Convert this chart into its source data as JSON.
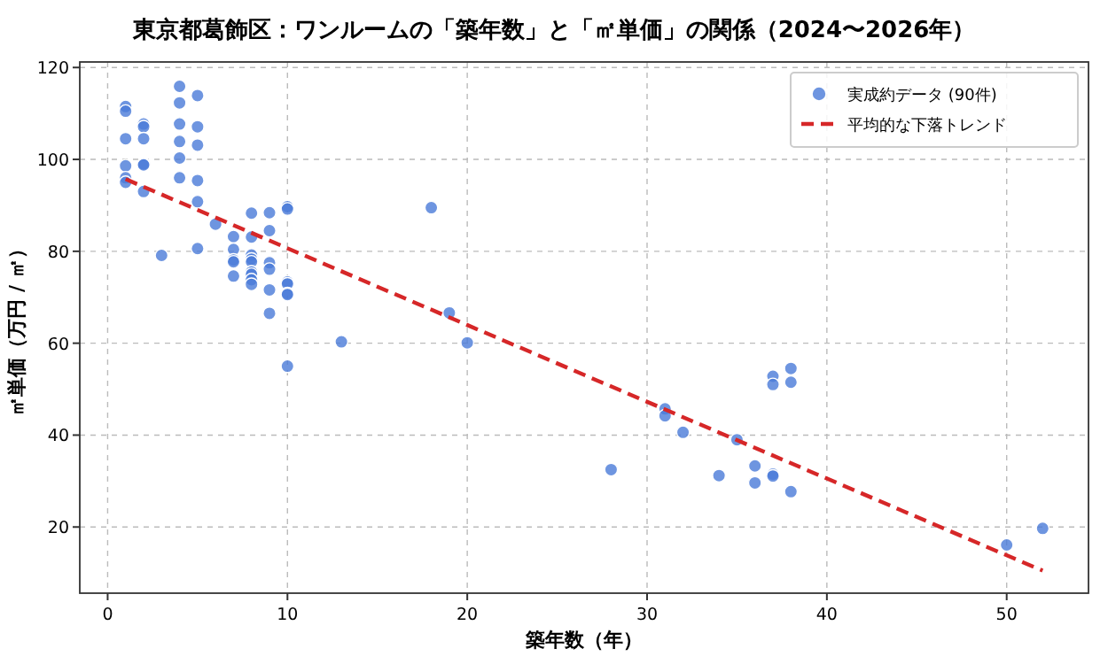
{
  "chart_data": {
    "type": "scatter",
    "title": "東京都葛飾区：ワンルームの「築年数」と「㎡単価」の関係（2024〜2026年）",
    "xlabel": "築年数（年）",
    "ylabel": "㎡単価（万円 / ㎡）",
    "xlim": [
      -1.55,
      54.55
    ],
    "ylim": [
      5.6,
      121.2
    ],
    "xticks": [
      0,
      10,
      20,
      30,
      40,
      50
    ],
    "yticks": [
      20,
      40,
      60,
      80,
      100,
      120
    ],
    "grid": true,
    "legend": "top right",
    "series": [
      {
        "name": "実成約データ (90件)",
        "marker": "circle",
        "color": "#4a7bd8",
        "x": [
          1,
          1,
          1,
          1,
          1,
          1,
          2,
          2,
          2,
          2,
          2,
          2,
          3,
          4,
          4,
          4,
          4,
          4,
          4,
          5,
          5,
          5,
          5,
          5,
          5,
          6,
          7,
          7,
          7,
          7,
          7,
          8,
          8,
          8,
          8,
          8,
          8,
          8,
          8,
          8,
          9,
          9,
          9,
          9,
          9,
          9,
          10,
          10,
          10,
          10,
          10,
          10,
          10,
          13,
          18,
          19,
          20,
          28,
          31,
          31,
          32,
          34,
          35,
          36,
          36,
          37,
          37,
          37,
          37,
          38,
          38,
          38,
          50,
          52
        ],
        "values": [
          111.5,
          110.5,
          104.5,
          98.6,
          96,
          95,
          107.7,
          107.1,
          104.5,
          99,
          98.8,
          93,
          79.1,
          115.9,
          112.3,
          107.7,
          103.9,
          100.3,
          96,
          113.9,
          107.1,
          103.1,
          95.4,
          90.8,
          80.6,
          85.9,
          83.2,
          80.4,
          78.1,
          77.7,
          74.6,
          88.3,
          83.1,
          79.2,
          78.3,
          77.7,
          75.5,
          75,
          73.8,
          72.8,
          88.4,
          84.5,
          77.5,
          76.1,
          71.6,
          66.5,
          89.7,
          89.2,
          73.3,
          72.9,
          70.8,
          70.6,
          55,
          60.3,
          89.5,
          66.6,
          60.1,
          32.5,
          45.7,
          44.2,
          40.6,
          31.2,
          39,
          33.3,
          29.6,
          52.8,
          51,
          31.5,
          31.1,
          54.5,
          51.5,
          27.7,
          16.1,
          19.7
        ]
      },
      {
        "name": "平均的な下落トレンド",
        "type": "line",
        "color": "#d62728",
        "line_style": "dashed",
        "x": [
          1,
          52
        ],
        "values": [
          95.7,
          10.5
        ]
      }
    ]
  }
}
